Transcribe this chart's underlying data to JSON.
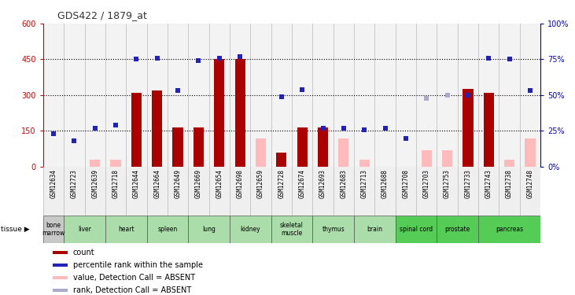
{
  "title": "GDS422 / 1879_at",
  "samples": [
    "GSM12634",
    "GSM12723",
    "GSM12639",
    "GSM12718",
    "GSM12644",
    "GSM12664",
    "GSM12649",
    "GSM12669",
    "GSM12654",
    "GSM12698",
    "GSM12659",
    "GSM12728",
    "GSM12674",
    "GSM12693",
    "GSM12683",
    "GSM12713",
    "GSM12688",
    "GSM12708",
    "GSM12703",
    "GSM12753",
    "GSM12733",
    "GSM12743",
    "GSM12738",
    "GSM12748"
  ],
  "tissues": [
    {
      "name": "bone\nmarrow",
      "start": 0,
      "end": 1,
      "color": "#c8c8c8"
    },
    {
      "name": "liver",
      "start": 1,
      "end": 3,
      "color": "#aaddaa"
    },
    {
      "name": "heart",
      "start": 3,
      "end": 5,
      "color": "#aaddaa"
    },
    {
      "name": "spleen",
      "start": 5,
      "end": 7,
      "color": "#aaddaa"
    },
    {
      "name": "lung",
      "start": 7,
      "end": 9,
      "color": "#aaddaa"
    },
    {
      "name": "kidney",
      "start": 9,
      "end": 11,
      "color": "#aaddaa"
    },
    {
      "name": "skeletal\nmuscle",
      "start": 11,
      "end": 13,
      "color": "#aaddaa"
    },
    {
      "name": "thymus",
      "start": 13,
      "end": 15,
      "color": "#aaddaa"
    },
    {
      "name": "brain",
      "start": 15,
      "end": 17,
      "color": "#aaddaa"
    },
    {
      "name": "spinal cord",
      "start": 17,
      "end": 19,
      "color": "#55cc55"
    },
    {
      "name": "prostate",
      "start": 19,
      "end": 21,
      "color": "#55cc55"
    },
    {
      "name": "pancreas",
      "start": 21,
      "end": 24,
      "color": "#55cc55"
    }
  ],
  "bar_values": [
    null,
    null,
    null,
    null,
    310,
    320,
    165,
    165,
    450,
    450,
    null,
    60,
    165,
    165,
    null,
    null,
    null,
    null,
    null,
    null,
    325,
    310,
    null,
    null
  ],
  "bar_absent": [
    null,
    null,
    30,
    30,
    null,
    null,
    null,
    null,
    null,
    null,
    120,
    null,
    null,
    null,
    120,
    30,
    null,
    null,
    70,
    70,
    null,
    null,
    30,
    120
  ],
  "blue_pct": [
    23,
    18,
    27,
    29,
    75,
    76,
    53,
    74,
    76,
    77,
    null,
    49,
    54,
    27,
    27,
    26,
    27,
    20,
    null,
    null,
    50,
    76,
    75,
    53
  ],
  "blue_absent_pct": [
    null,
    null,
    null,
    null,
    null,
    null,
    null,
    null,
    null,
    null,
    null,
    null,
    null,
    null,
    null,
    null,
    null,
    null,
    48,
    50,
    null,
    null,
    null,
    null
  ],
  "ylim_left": [
    0,
    600
  ],
  "yticks_left": [
    0,
    150,
    300,
    450,
    600
  ],
  "yticks_right": [
    0,
    25,
    50,
    75,
    100
  ],
  "bar_color": "#aa0000",
  "bar_absent_color": "#ffbbbb",
  "blue_color": "#2222bb",
  "blue_absent_color": "#aaaacc",
  "left_axis_color": "#cc0000",
  "right_axis_color": "#0000cc"
}
